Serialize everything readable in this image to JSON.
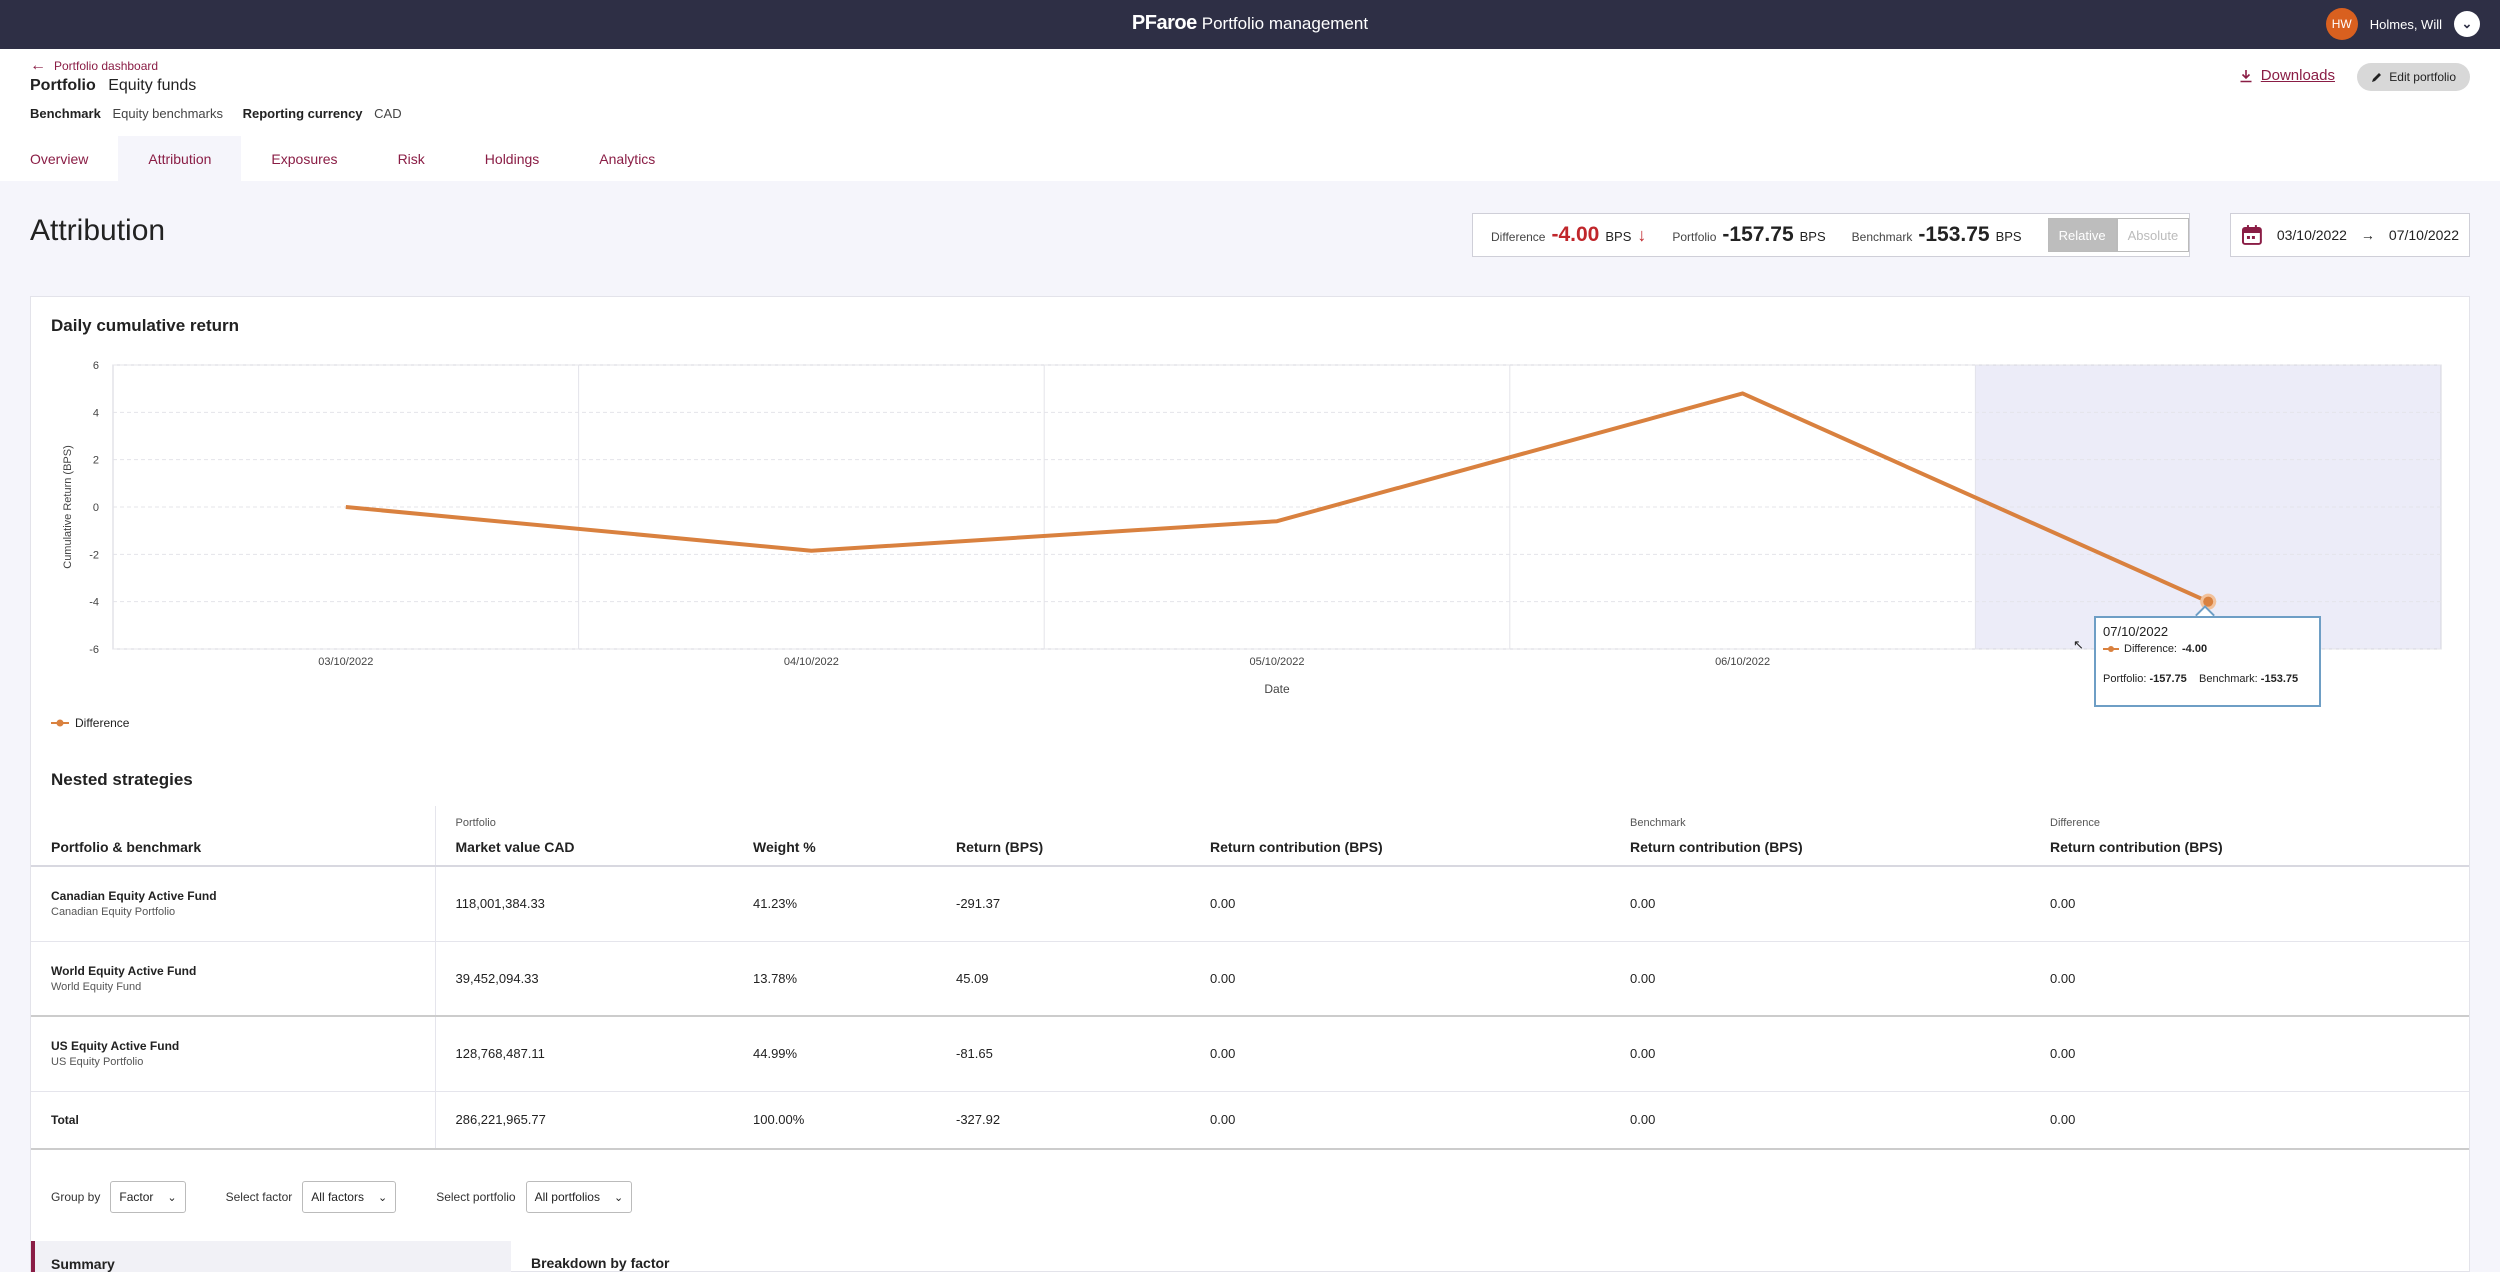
{
  "topbar": {
    "logo": "PFaroe",
    "app_name": "Portfolio management",
    "user_initials": "HW",
    "user_name": "Holmes, Will"
  },
  "header": {
    "back_label": "Portfolio dashboard",
    "portfolio_label": "Portfolio",
    "portfolio_name": "Equity funds",
    "benchmark_label": "Benchmark",
    "benchmark_value": "Equity benchmarks",
    "currency_label": "Reporting currency",
    "currency_value": "CAD",
    "downloads_label": "Downloads",
    "edit_label": "Edit portfolio"
  },
  "tabs": [
    {
      "label": "Overview",
      "active": false
    },
    {
      "label": "Attribution",
      "active": true
    },
    {
      "label": "Exposures",
      "active": false
    },
    {
      "label": "Risk",
      "active": false
    },
    {
      "label": "Holdings",
      "active": false
    },
    {
      "label": "Analytics",
      "active": false
    }
  ],
  "page": {
    "title": "Attribution"
  },
  "summary": {
    "difference_label": "Difference",
    "difference_value": "-4.00",
    "portfolio_label": "Portfolio",
    "portfolio_value": "-157.75",
    "benchmark_label": "Benchmark",
    "benchmark_value": "-153.75",
    "unit": "BPS",
    "toggle_relative": "Relative",
    "toggle_absolute": "Absolute"
  },
  "date_range": {
    "start": "03/10/2022",
    "end": "07/10/2022"
  },
  "chart_card": {
    "title": "Daily cumulative return"
  },
  "chart_data": {
    "type": "line",
    "title": "Daily cumulative return",
    "xlabel": "Date",
    "ylabel": "Cumulative Return (BPS)",
    "x": [
      "03/10/2022",
      "04/10/2022",
      "05/10/2022",
      "06/10/2022",
      "07/10/2022"
    ],
    "series": [
      {
        "name": "Difference",
        "values": [
          0.0,
          -1.85,
          -0.6,
          4.8,
          -4.0
        ]
      }
    ],
    "ylim": [
      -6,
      6
    ],
    "yticks": [
      6,
      4,
      2,
      0,
      -2,
      -4,
      -6
    ],
    "grid": true,
    "legend": "bottom-left",
    "highlighted_index": 4,
    "colors": {
      "line": "#d9813f",
      "highlight_band": "#ececf8"
    }
  },
  "tooltip": {
    "date": "07/10/2022",
    "difference_label": "Difference:",
    "difference_value": "-4.00",
    "portfolio_label": "Portfolio:",
    "portfolio_value": "-157.75",
    "benchmark_label": "Benchmark:",
    "benchmark_value": "-153.75"
  },
  "nested": {
    "title": "Nested strategies",
    "group_portfolio": "Portfolio",
    "group_benchmark": "Benchmark",
    "group_difference": "Difference",
    "columns": [
      "Portfolio & benchmark",
      "Market value CAD",
      "Weight %",
      "Return (BPS)",
      "Return contribution (BPS)",
      "Return contribution (BPS)",
      "Return contribution (BPS)"
    ],
    "rows": [
      {
        "name": "Canadian Equity Active Fund",
        "sub": "Canadian Equity Portfolio",
        "mv": "118,001,384.33",
        "weight": "41.23%",
        "ret": "-291.37",
        "contrib": "0.00",
        "bm_contrib": "0.00",
        "diff_contrib": "0.00"
      },
      {
        "name": "World Equity Active Fund",
        "sub": "World Equity Fund",
        "mv": "39,452,094.33",
        "weight": "13.78%",
        "ret": "45.09",
        "contrib": "0.00",
        "bm_contrib": "0.00",
        "diff_contrib": "0.00"
      },
      {
        "name": "US Equity Active Fund",
        "sub": "US Equity Portfolio",
        "mv": "128,768,487.11",
        "weight": "44.99%",
        "ret": "-81.65",
        "contrib": "0.00",
        "bm_contrib": "0.00",
        "diff_contrib": "0.00"
      }
    ],
    "total": {
      "name": "Total",
      "mv": "286,221,965.77",
      "weight": "100.00%",
      "ret": "-327.92",
      "contrib": "0.00",
      "bm_contrib": "0.00",
      "diff_contrib": "0.00"
    }
  },
  "filters": {
    "group_by_label": "Group by",
    "group_by_value": "Factor",
    "factor_label": "Select factor",
    "factor_value": "All factors",
    "portfolio_label": "Select portfolio",
    "portfolio_value": "All portfolios"
  },
  "bottom": {
    "summary_label": "Summary",
    "breakdown_label": "Breakdown by factor"
  }
}
